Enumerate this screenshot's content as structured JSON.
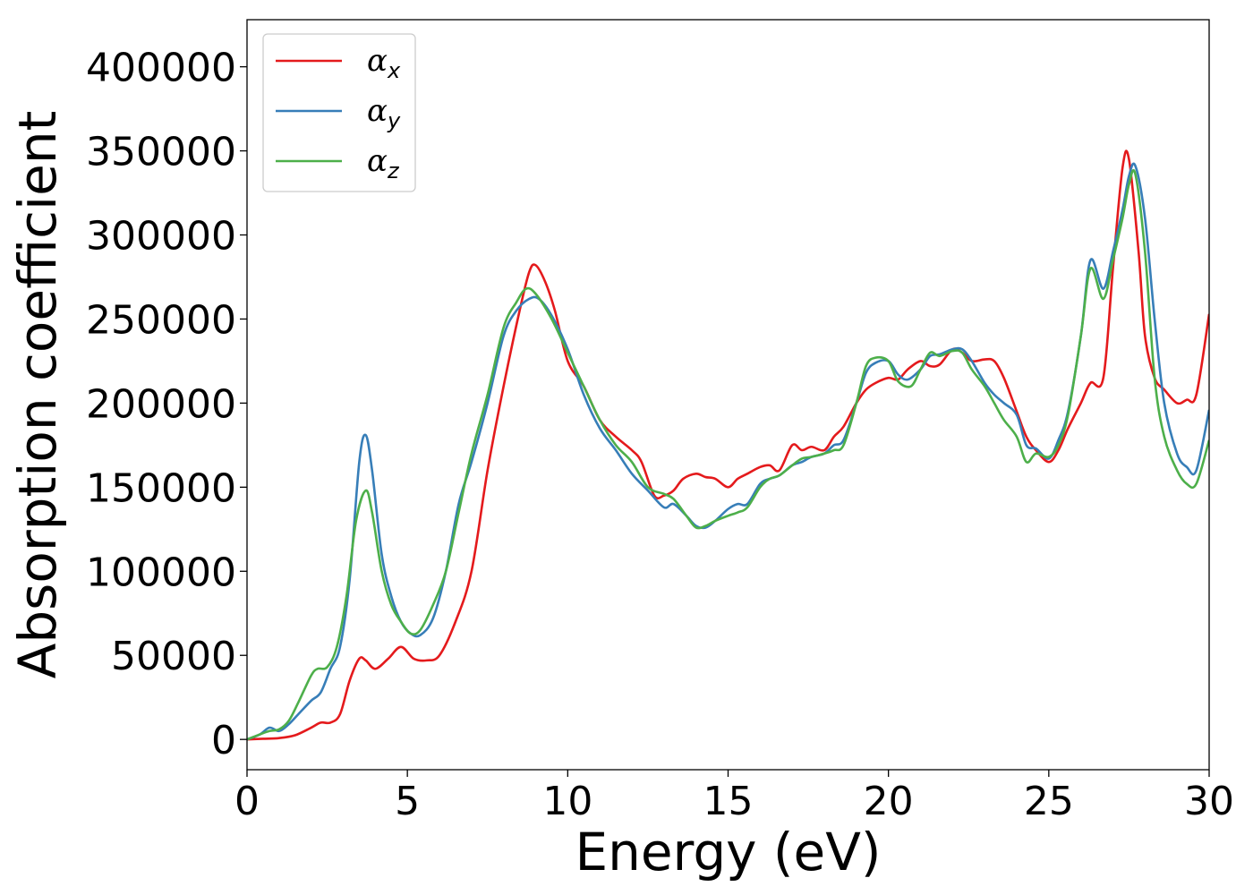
{
  "chart_data": {
    "type": "line",
    "title": "",
    "xlabel": "Energy (eV)",
    "ylabel": "Absorption coefficient",
    "xlim": [
      0,
      30
    ],
    "ylim": [
      -18000,
      428000
    ],
    "xticks": [
      0,
      5,
      10,
      15,
      20,
      25,
      30
    ],
    "yticks": [
      0,
      50000,
      100000,
      150000,
      200000,
      250000,
      300000,
      350000,
      400000
    ],
    "grid": false,
    "legend_position": "top-left",
    "series": [
      {
        "name": "α_x",
        "label_base": "α",
        "label_sub": "x",
        "color": "#e41a1c",
        "x": [
          0,
          0.5,
          1.0,
          1.5,
          2.0,
          2.3,
          2.6,
          2.9,
          3.2,
          3.5,
          3.7,
          4.0,
          4.4,
          4.8,
          5.2,
          5.6,
          6.0,
          6.5,
          7.0,
          7.5,
          8.0,
          8.5,
          8.8,
          9.0,
          9.3,
          9.6,
          10.0,
          10.5,
          11.0,
          11.5,
          12.0,
          12.3,
          12.7,
          13.0,
          13.3,
          13.6,
          14.0,
          14.3,
          14.6,
          15.0,
          15.3,
          15.6,
          16.0,
          16.3,
          16.6,
          17.0,
          17.3,
          17.6,
          18.0,
          18.3,
          18.6,
          19.0,
          19.3,
          19.6,
          20.0,
          20.3,
          20.6,
          21.0,
          21.3,
          21.6,
          22.0,
          22.3,
          22.6,
          23.0,
          23.3,
          23.6,
          24.0,
          24.3,
          24.6,
          25.0,
          25.3,
          25.6,
          26.0,
          26.3,
          26.7,
          27.0,
          27.3,
          27.5,
          27.8,
          28.0,
          28.3,
          28.6,
          29.0,
          29.3,
          29.6,
          30.0
        ],
        "y": [
          0,
          400,
          800,
          2500,
          7000,
          10000,
          10000,
          15000,
          35000,
          48000,
          47000,
          42000,
          48000,
          55000,
          48000,
          47000,
          50000,
          70000,
          100000,
          160000,
          210000,
          255000,
          278000,
          282000,
          272000,
          255000,
          225000,
          210000,
          190000,
          180000,
          172000,
          165000,
          145000,
          145000,
          148000,
          155000,
          158000,
          156000,
          155000,
          150000,
          155000,
          158000,
          162000,
          163000,
          160000,
          175000,
          172000,
          174000,
          172000,
          180000,
          186000,
          200000,
          208000,
          212000,
          215000,
          214000,
          220000,
          225000,
          222000,
          223000,
          232000,
          230000,
          225000,
          226000,
          225000,
          215000,
          195000,
          180000,
          172000,
          165000,
          172000,
          185000,
          200000,
          212000,
          215000,
          280000,
          340000,
          345000,
          290000,
          240000,
          215000,
          208000,
          200000,
          202000,
          205000,
          253000
        ]
      },
      {
        "name": "α_y",
        "label_base": "α",
        "label_sub": "y",
        "color": "#377eb8",
        "x": [
          0,
          0.4,
          0.7,
          1.0,
          1.3,
          1.6,
          2.0,
          2.3,
          2.6,
          2.9,
          3.2,
          3.5,
          3.7,
          3.9,
          4.2,
          4.5,
          4.8,
          5.1,
          5.4,
          5.8,
          6.2,
          6.6,
          7.0,
          7.5,
          8.0,
          8.4,
          8.8,
          9.1,
          9.5,
          10.0,
          10.5,
          11.0,
          11.5,
          12.0,
          12.5,
          13.0,
          13.3,
          13.7,
          14.0,
          14.3,
          14.6,
          15.0,
          15.3,
          15.6,
          16.0,
          16.3,
          16.6,
          17.0,
          17.3,
          17.6,
          18.0,
          18.3,
          18.6,
          19.0,
          19.3,
          19.6,
          20.0,
          20.3,
          20.6,
          21.0,
          21.3,
          21.6,
          22.0,
          22.3,
          22.6,
          23.0,
          23.3,
          23.6,
          24.0,
          24.3,
          24.6,
          25.0,
          25.3,
          25.6,
          26.0,
          26.3,
          26.7,
          27.0,
          27.3,
          27.5,
          27.7,
          28.0,
          28.3,
          28.6,
          29.0,
          29.3,
          29.6,
          30.0
        ],
        "y": [
          0,
          3000,
          7000,
          5000,
          9000,
          15000,
          23000,
          28000,
          42000,
          55000,
          95000,
          165000,
          181000,
          160000,
          110000,
          85000,
          70000,
          63000,
          62000,
          72000,
          100000,
          140000,
          165000,
          200000,
          240000,
          255000,
          262000,
          262000,
          252000,
          232000,
          205000,
          185000,
          172000,
          158000,
          148000,
          138000,
          140000,
          133000,
          127000,
          126000,
          130000,
          137000,
          140000,
          140000,
          152000,
          155000,
          157000,
          163000,
          165000,
          168000,
          170000,
          175000,
          178000,
          200000,
          218000,
          224000,
          225000,
          217000,
          214000,
          220000,
          228000,
          229000,
          232000,
          232000,
          225000,
          212000,
          205000,
          200000,
          193000,
          175000,
          173000,
          167000,
          178000,
          195000,
          240000,
          285000,
          268000,
          290000,
          315000,
          335000,
          341000,
          310000,
          250000,
          200000,
          170000,
          162000,
          160000,
          196000
        ]
      },
      {
        "name": "α_z",
        "label_base": "α",
        "label_sub": "z",
        "color": "#4daf4a",
        "x": [
          0,
          0.4,
          0.7,
          1.0,
          1.3,
          1.6,
          2.0,
          2.2,
          2.5,
          2.8,
          3.1,
          3.4,
          3.7,
          3.9,
          4.2,
          4.5,
          4.8,
          5.1,
          5.4,
          5.8,
          6.2,
          6.6,
          7.0,
          7.5,
          8.0,
          8.4,
          8.7,
          9.0,
          9.5,
          10.0,
          10.5,
          11.0,
          11.5,
          12.0,
          12.5,
          13.0,
          13.3,
          13.7,
          14.0,
          14.3,
          14.6,
          15.0,
          15.3,
          15.6,
          16.0,
          16.3,
          16.6,
          17.0,
          17.3,
          17.6,
          18.0,
          18.3,
          18.6,
          19.0,
          19.3,
          19.6,
          20.0,
          20.3,
          20.7,
          21.0,
          21.3,
          21.6,
          22.0,
          22.3,
          22.6,
          23.0,
          23.3,
          23.6,
          24.0,
          24.3,
          24.6,
          25.0,
          25.3,
          25.6,
          26.0,
          26.3,
          26.7,
          27.0,
          27.3,
          27.5,
          27.7,
          28.0,
          28.3,
          28.6,
          29.0,
          29.3,
          29.6,
          30.0
        ],
        "y": [
          0,
          3000,
          5000,
          6000,
          11000,
          22000,
          38000,
          42000,
          43000,
          55000,
          85000,
          130000,
          148000,
          135000,
          100000,
          80000,
          70000,
          63000,
          65000,
          80000,
          100000,
          135000,
          170000,
          205000,
          245000,
          260000,
          268000,
          265000,
          250000,
          230000,
          210000,
          190000,
          175000,
          165000,
          150000,
          146000,
          143000,
          133000,
          126000,
          127000,
          130000,
          133000,
          135000,
          138000,
          150000,
          155000,
          157000,
          163000,
          167000,
          168000,
          170000,
          172000,
          175000,
          200000,
          222000,
          227000,
          225000,
          213000,
          210000,
          220000,
          230000,
          228000,
          231000,
          230000,
          220000,
          210000,
          200000,
          190000,
          180000,
          165000,
          170000,
          168000,
          175000,
          193000,
          240000,
          280000,
          262000,
          285000,
          310000,
          330000,
          336000,
          290000,
          215000,
          180000,
          160000,
          152000,
          152000,
          178000
        ]
      }
    ]
  }
}
